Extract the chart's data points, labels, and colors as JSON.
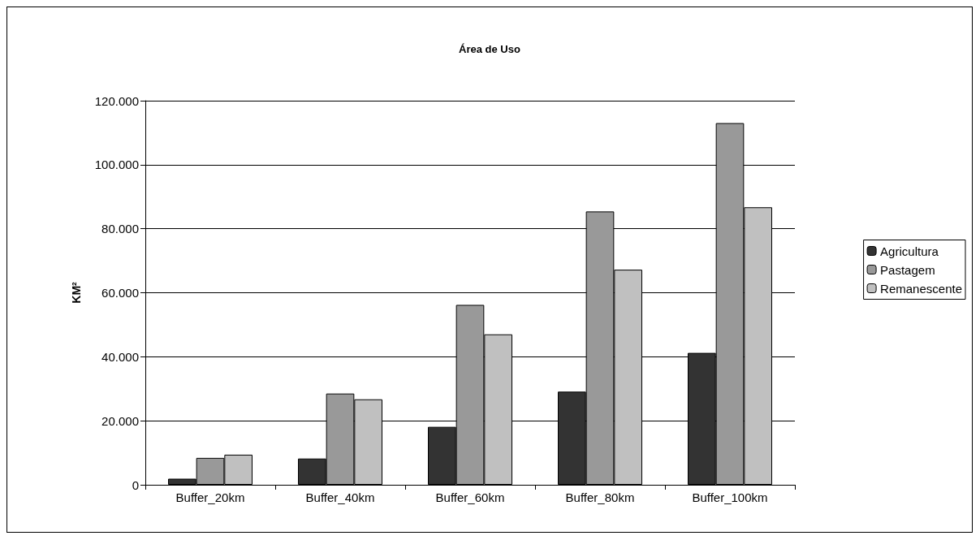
{
  "chart_data": {
    "type": "bar",
    "title": "Área de Uso",
    "ylabel": "KM²",
    "categories": [
      "Buffer_20km",
      "Buffer_40km",
      "Buffer_60km",
      "Buffer_80km",
      "Buffer_100km"
    ],
    "series": [
      {
        "name": "Agricultura",
        "color": "#333333",
        "values": [
          1900,
          8200,
          18100,
          29100,
          41200
        ]
      },
      {
        "name": "Pastagem",
        "color": "#999999",
        "values": [
          8400,
          28500,
          56200,
          85400,
          113000
        ]
      },
      {
        "name": "Remanescente",
        "color": "#c0c0c0",
        "values": [
          9400,
          26700,
          47000,
          67200,
          86700
        ]
      }
    ],
    "ylim": [
      0,
      120000
    ],
    "yticks": [
      {
        "value": 0,
        "label": "0"
      },
      {
        "value": 20000,
        "label": "20.000"
      },
      {
        "value": 40000,
        "label": "40.000"
      },
      {
        "value": 60000,
        "label": "60.000"
      },
      {
        "value": 80000,
        "label": "80.000"
      },
      {
        "value": 100000,
        "label": "100.000"
      },
      {
        "value": 120000,
        "label": "120.000"
      }
    ],
    "grid": "y",
    "legend": "right"
  }
}
